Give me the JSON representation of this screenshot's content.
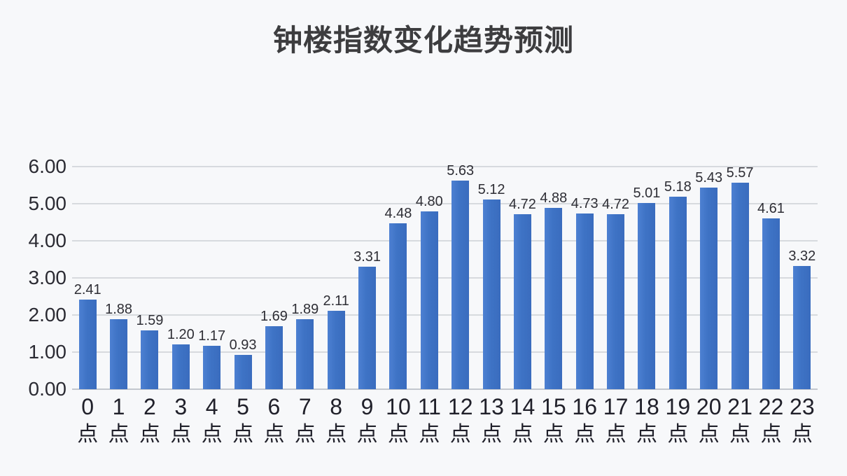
{
  "page": {
    "background": "#f7f8fa"
  },
  "colors": {
    "bar_fill": "#3e73c5",
    "bar_fill_light": "#4d80d2",
    "bar_fill_dark": "#3a6cbe",
    "gridline": "#d7dade",
    "axis_line": "#c3c7ce",
    "title_text": "#3d3d3f",
    "axis_text": "#20202a",
    "y_tick_text": "#2b2b33",
    "value_label_text": "#2e2e35"
  },
  "chart_data": {
    "type": "bar",
    "title": "钟楼指数变化趋势预测",
    "categories": [
      "0点",
      "1点",
      "2点",
      "3点",
      "4点",
      "5点",
      "6点",
      "7点",
      "8点",
      "9点",
      "10点",
      "11点",
      "12点",
      "13点",
      "14点",
      "15点",
      "16点",
      "17点",
      "18点",
      "19点",
      "20点",
      "21点",
      "22点",
      "23点"
    ],
    "values": [
      2.41,
      1.88,
      1.59,
      1.2,
      1.17,
      0.93,
      1.69,
      1.89,
      2.11,
      3.31,
      4.48,
      4.8,
      5.63,
      5.12,
      4.72,
      4.88,
      4.73,
      4.72,
      5.01,
      5.18,
      5.43,
      5.57,
      4.61,
      3.32
    ],
    "value_labels": [
      "2.41",
      "1.88",
      "1.59",
      "1.20",
      "1.17",
      "0.93",
      "1.69",
      "1.89",
      "2.11",
      "3.31",
      "4.48",
      "4.80",
      "5.63",
      "5.12",
      "4.72",
      "4.88",
      "4.73",
      "4.72",
      "5.01",
      "5.18",
      "5.43",
      "5.57",
      "4.61",
      "3.32"
    ],
    "y_ticks": [
      "0.00",
      "1.00",
      "2.00",
      "3.00",
      "4.00",
      "5.00",
      "6.00"
    ],
    "ylim": [
      0,
      6
    ],
    "grid": true,
    "legend_position": "none",
    "value_labels_position": "outside-end"
  }
}
